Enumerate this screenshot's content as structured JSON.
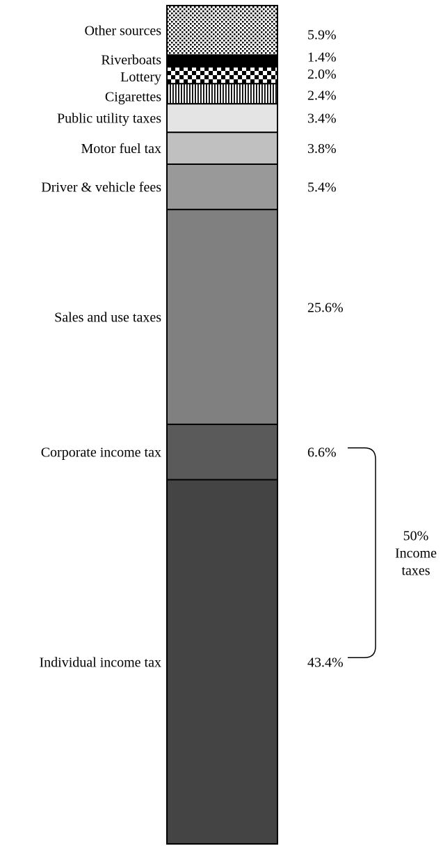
{
  "chart_data": {
    "type": "bar",
    "stacked": true,
    "orientation": "vertical",
    "unit": "%",
    "segments": [
      {
        "name": "Individual income tax",
        "value": 43.4,
        "value_label": "43.4%",
        "fill": "#444444"
      },
      {
        "name": "Corporate income tax",
        "value": 6.6,
        "value_label": "6.6%",
        "fill": "#5a5a5a"
      },
      {
        "name": "Sales and use taxes",
        "value": 25.6,
        "value_label": "25.6%",
        "fill": "#808080"
      },
      {
        "name": "Driver & vehicle fees",
        "value": 5.4,
        "value_label": "5.4%",
        "fill": "#999999"
      },
      {
        "name": "Motor fuel tax",
        "value": 3.8,
        "value_label": "3.8%",
        "fill": "#c0c0c0"
      },
      {
        "name": "Public utility taxes",
        "value": 3.4,
        "value_label": "3.4%",
        "fill": "#e4e4e4"
      },
      {
        "name": "Cigarettes",
        "value": 2.4,
        "value_label": "2.4%",
        "pattern": "vertical-lines"
      },
      {
        "name": "Lottery",
        "value": 2.0,
        "value_label": "2.0%",
        "pattern": "checker"
      },
      {
        "name": "Riverboats",
        "value": 1.4,
        "value_label": "1.4%",
        "fill": "#000000"
      },
      {
        "name": "Other sources",
        "value": 5.9,
        "value_label": "5.9%",
        "pattern": "dots"
      }
    ],
    "annotation": {
      "lines": [
        "50%",
        "Income",
        "taxes"
      ],
      "spans": [
        "Corporate income tax",
        "Individual income tax"
      ]
    }
  }
}
